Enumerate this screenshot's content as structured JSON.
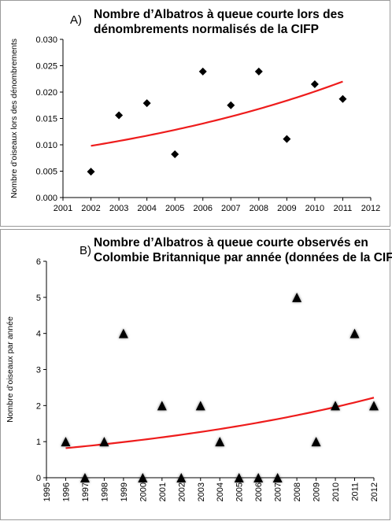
{
  "chart_data": [
    {
      "type": "scatter",
      "panel_label": "A)",
      "title_line1": "Nombre d’Albatros à queue courte lors des",
      "title_line2": "dénombrements normalisés de la CIFP",
      "ylabel": "Nombre d’oiseaux lors des dénombrements",
      "xlabel": "",
      "xlim": [
        2001,
        2012
      ],
      "ylim": [
        0,
        0.03
      ],
      "xticks": [
        "2001",
        "2002",
        "2003",
        "2004",
        "2005",
        "2006",
        "2007",
        "2008",
        "2009",
        "2010",
        "2011",
        "2012"
      ],
      "yticks": [
        "0.000",
        "0.005",
        "0.010",
        "0.015",
        "0.020",
        "0.025",
        "0.030"
      ],
      "marker": "diamond",
      "points": [
        {
          "x": 2002,
          "y": 0.0049
        },
        {
          "x": 2003,
          "y": 0.0156
        },
        {
          "x": 2004,
          "y": 0.0179
        },
        {
          "x": 2005,
          "y": 0.0082
        },
        {
          "x": 2006,
          "y": 0.0239
        },
        {
          "x": 2007,
          "y": 0.0175
        },
        {
          "x": 2008,
          "y": 0.0239
        },
        {
          "x": 2009,
          "y": 0.0111
        },
        {
          "x": 2010,
          "y": 0.0215
        },
        {
          "x": 2011,
          "y": 0.0187
        }
      ],
      "trend": {
        "type": "exponential",
        "x_start": 2002,
        "y_start": 0.0098,
        "x_end": 2011,
        "y_end": 0.022
      },
      "marker_color": "#000000",
      "trend_color": "#ee1c1c",
      "grid": false
    },
    {
      "type": "scatter",
      "panel_label": "B)",
      "title_line1": "Nombre d’Albatros à queue courte observés en",
      "title_line2": "Colombie Britannique par année (données de la CIFP)",
      "ylabel": "Nombre d’oiseaux par année",
      "xlabel": "",
      "xlim": [
        1995,
        2012
      ],
      "ylim": [
        0,
        6
      ],
      "xticks": [
        "1995",
        "1996",
        "1997",
        "1998",
        "1999",
        "2000",
        "2001",
        "2002",
        "2003",
        "2004",
        "2005",
        "2006",
        "2007",
        "2008",
        "2009",
        "2010",
        "2011",
        "2012"
      ],
      "yticks": [
        "0",
        "1",
        "2",
        "3",
        "4",
        "5",
        "6"
      ],
      "marker": "triangle",
      "points": [
        {
          "x": 1996,
          "y": 1
        },
        {
          "x": 1997,
          "y": 0
        },
        {
          "x": 1998,
          "y": 1
        },
        {
          "x": 1999,
          "y": 4
        },
        {
          "x": 2000,
          "y": 0
        },
        {
          "x": 2001,
          "y": 2
        },
        {
          "x": 2002,
          "y": 0
        },
        {
          "x": 2003,
          "y": 2
        },
        {
          "x": 2004,
          "y": 1
        },
        {
          "x": 2005,
          "y": 0
        },
        {
          "x": 2006,
          "y": 0
        },
        {
          "x": 2007,
          "y": 0
        },
        {
          "x": 2008,
          "y": 5
        },
        {
          "x": 2009,
          "y": 1
        },
        {
          "x": 2010,
          "y": 2
        },
        {
          "x": 2011,
          "y": 4
        },
        {
          "x": 2012,
          "y": 2
        }
      ],
      "trend": {
        "type": "exponential",
        "x_start": 1996,
        "y_start": 0.82,
        "x_end": 2012,
        "y_end": 2.22
      },
      "marker_color": "#000000",
      "trend_color": "#ee1c1c",
      "grid": false
    }
  ]
}
